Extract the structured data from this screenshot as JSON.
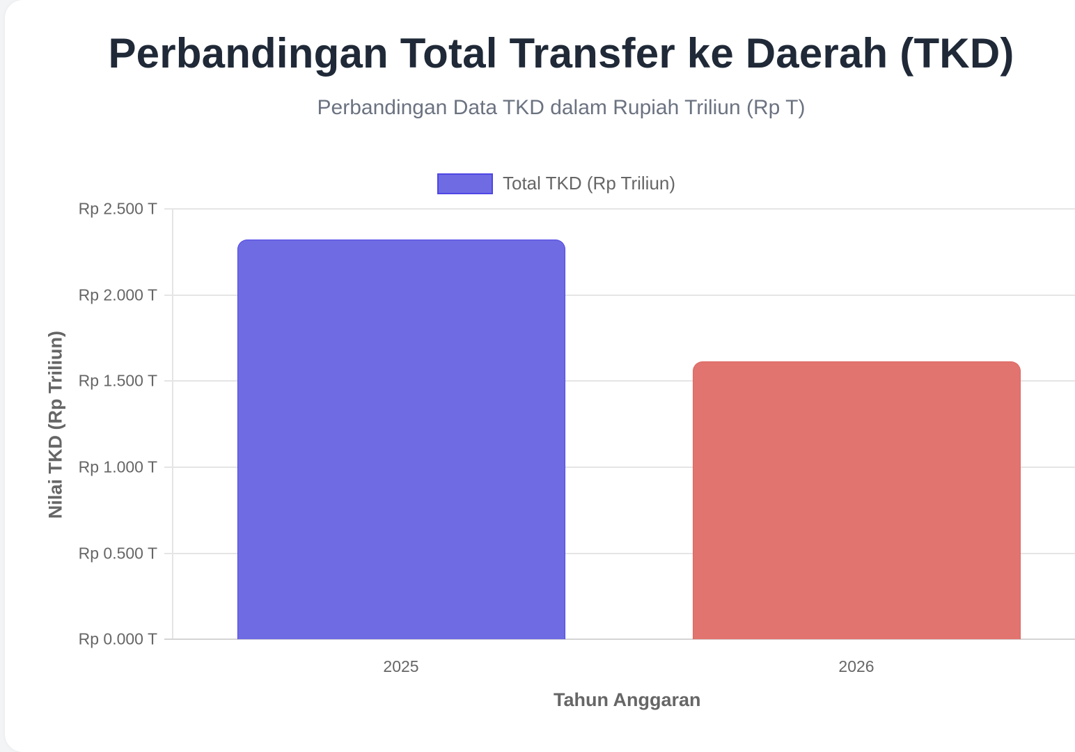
{
  "header": {
    "title": "Perbandingan Total Transfer ke Daerah (TKD)",
    "subtitle": "Perbandingan Data TKD dalam Rupiah Triliun (Rp T)"
  },
  "legend": {
    "label": "Total TKD (Rp Triliun)"
  },
  "axes": {
    "ylabel": "Nilai TKD (Rp Triliun)",
    "xlabel": "Tahun Anggaran",
    "yticks": [
      "Rp 2.500 T",
      "Rp 2.000 T",
      "Rp 1.500 T",
      "Rp 1.000 T",
      "Rp 0.500 T",
      "Rp 0.000 T"
    ],
    "xticks": [
      "2025",
      "2026"
    ]
  },
  "colors": {
    "bar_2025": "#6f6be3",
    "bar_2026": "#e2746f",
    "title": "#1f2937",
    "subtitle": "#6b7280"
  },
  "chart_data": {
    "type": "bar",
    "title": "Perbandingan Total Transfer ke Daerah (TKD)",
    "subtitle": "Perbandingan Data TKD dalam Rupiah Triliun (Rp T)",
    "categories": [
      "2025",
      "2026"
    ],
    "series": [
      {
        "name": "Total TKD (Rp Triliun)",
        "values": [
          2322,
          1614
        ],
        "colors": [
          "#6f6be3",
          "#e2746f"
        ]
      }
    ],
    "xlabel": "Tahun Anggaran",
    "ylabel": "Nilai TKD (Rp Triliun)",
    "ylim": [
      0,
      2500
    ],
    "yticks": [
      0,
      500,
      1000,
      1500,
      2000,
      2500
    ],
    "ytick_labels": [
      "Rp 0.000 T",
      "Rp 0.500 T",
      "Rp 1.000 T",
      "Rp 1.500 T",
      "Rp 2.000 T",
      "Rp 2.500 T"
    ],
    "grid": true,
    "legend_position": "top"
  }
}
